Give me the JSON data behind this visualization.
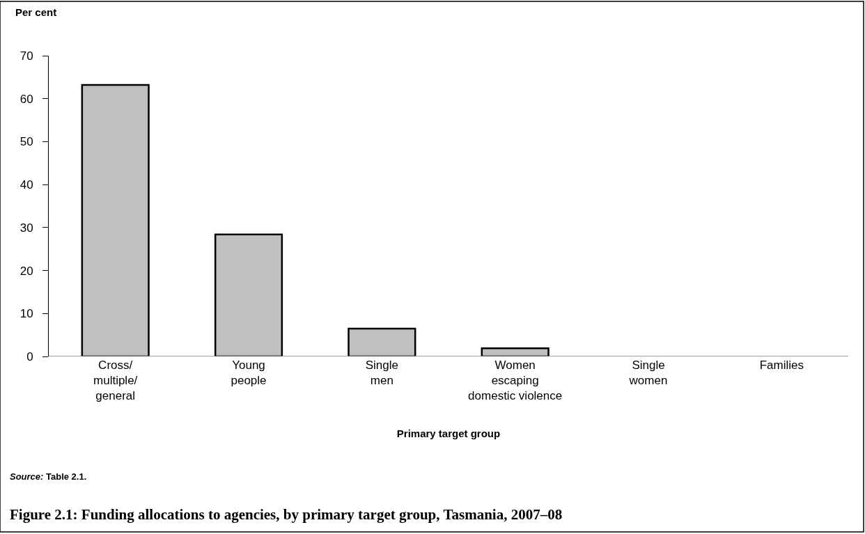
{
  "chart_data": {
    "type": "bar",
    "title": "Figure 2.1: Funding allocations to agencies, by primary target group, Tasmania, 2007–08",
    "xlabel": "Primary target group",
    "ylabel": "Per cent",
    "categories": [
      "Cross/\nmultiple/\ngeneral",
      "Young\npeople",
      "Single\nmen",
      "Women\nescaping\ndomestic violence",
      "Single\nwomen",
      "Families"
    ],
    "values": [
      63.2,
      28.4,
      6.5,
      1.9,
      0,
      0
    ],
    "color": "#c0c0c0",
    "ylim": [
      0,
      70
    ],
    "yticks": [
      0,
      10,
      20,
      30,
      40,
      50,
      60,
      70
    ],
    "annotations": [
      "Source: Table 2.1."
    ]
  }
}
